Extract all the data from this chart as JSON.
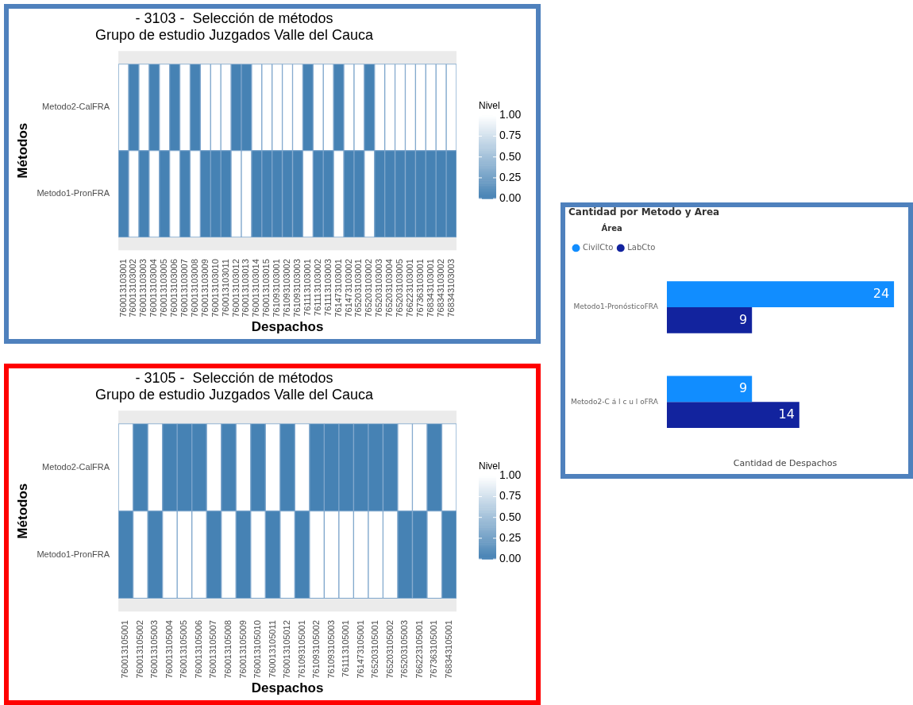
{
  "chart_data": [
    {
      "type": "heatmap",
      "title": "- 3103 -  Selección de métodos",
      "subtitle": "Grupo de estudio Juzgados Valle del Cauca",
      "xlabel": "Despachos",
      "ylabel": "Métodos",
      "clabel": "Nivel",
      "categories": [
        "760013103001",
        "760013103002",
        "760013103003",
        "760013103004",
        "760013103005",
        "760013103006",
        "760013103007",
        "760013103008",
        "760013103009",
        "760013103010",
        "760013103011",
        "760013103012",
        "760013103013",
        "760013103014",
        "760013103015",
        "761093103001",
        "761093103002",
        "761093103003",
        "761113103001",
        "761113103002",
        "761113103003",
        "761473103001",
        "761473103002",
        "765203103001",
        "765203103002",
        "765203103003",
        "765203103004",
        "765203103005",
        "766223103001",
        "767363103001",
        "768343103001",
        "768343103002",
        "768343103003"
      ],
      "y_categories": [
        "Metodo2-CalFRA",
        "Metodo1-PronFRA"
      ],
      "cells": [
        [
          1,
          0,
          1,
          0,
          1,
          0,
          1,
          0,
          1,
          1,
          1,
          0,
          0,
          1,
          1,
          1,
          1,
          1,
          0,
          1,
          1,
          0,
          1,
          1,
          0,
          1,
          1,
          1,
          1,
          1,
          1,
          1,
          1
        ],
        [
          0,
          1,
          0,
          1,
          0,
          1,
          0,
          1,
          0,
          0,
          0,
          1,
          1,
          0,
          0,
          0,
          0,
          0,
          1,
          0,
          0,
          1,
          0,
          0,
          1,
          0,
          0,
          0,
          0,
          0,
          0,
          0,
          0
        ]
      ],
      "clim": [
        0,
        1
      ],
      "cticks": [
        {
          "value": 0,
          "label": "0.00"
        },
        {
          "value": 0.25,
          "label": "0.25"
        },
        {
          "value": 0.5,
          "label": "0.50"
        },
        {
          "value": 0.75,
          "label": "0.75"
        },
        {
          "value": 1,
          "label": "1.00"
        }
      ]
    },
    {
      "type": "heatmap",
      "title": "- 3105 -  Selección de métodos",
      "subtitle": "Grupo de estudio Juzgados Valle del Cauca",
      "xlabel": "Despachos",
      "ylabel": "Métodos",
      "clabel": "Nivel",
      "categories": [
        "760013105001",
        "760013105002",
        "760013105003",
        "760013105004",
        "760013105005",
        "760013105006",
        "760013105007",
        "760013105008",
        "760013105009",
        "760013105010",
        "760013105011",
        "760013105012",
        "761093105001",
        "761093105002",
        "761093105003",
        "761113105001",
        "761473105001",
        "765203105001",
        "765203105002",
        "765203105003",
        "766223105001",
        "767363105001",
        "768343105001"
      ],
      "y_categories": [
        "Metodo2-CalFRA",
        "Metodo1-PronFRA"
      ],
      "cells": [
        [
          1,
          0,
          1,
          0,
          0,
          0,
          1,
          0,
          1,
          0,
          1,
          0,
          1,
          0,
          0,
          0,
          0,
          0,
          0,
          1,
          1,
          0,
          1
        ],
        [
          0,
          1,
          0,
          1,
          1,
          1,
          0,
          1,
          0,
          1,
          0,
          1,
          0,
          1,
          1,
          1,
          1,
          1,
          1,
          0,
          0,
          1,
          0
        ]
      ],
      "clim": [
        0,
        1
      ],
      "cticks": [
        {
          "value": 0,
          "label": "0.00"
        },
        {
          "value": 0.25,
          "label": "0.25"
        },
        {
          "value": 0.5,
          "label": "0.50"
        },
        {
          "value": 0.75,
          "label": "0.75"
        },
        {
          "value": 1,
          "label": "1.00"
        }
      ]
    },
    {
      "type": "bar",
      "orientation": "horizontal",
      "title": "Cantidad por Metodo y Area",
      "xlabel": "Cantidad de Despachos",
      "legend_title": "Área",
      "legend": "top left",
      "tick_labels": "y",
      "data_labels": true,
      "categories": [
        "Metodo1-PronósticoFRA",
        "Metodo2-C á l c u l oFRA"
      ],
      "series": [
        {
          "name": "CivilCto",
          "color": "#118dff",
          "values": [
            24,
            9
          ]
        },
        {
          "name": "LabCto",
          "color": "#12239e",
          "values": [
            9,
            14
          ]
        }
      ]
    }
  ]
}
